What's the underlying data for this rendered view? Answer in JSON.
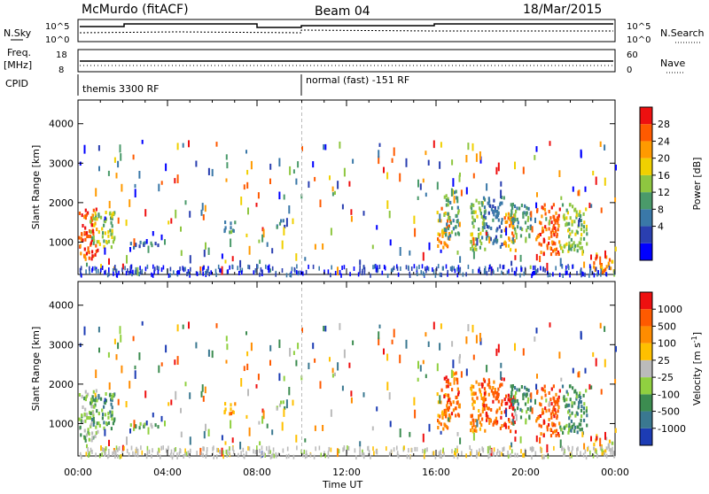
{
  "header": {
    "station": "McMurdo (fitACF)",
    "beam": "Beam 04",
    "date": "18/Mar/2015"
  },
  "strips": {
    "nsky_label": "N.Sky",
    "noise_left_ticks": [
      "10^5",
      "10^0"
    ],
    "noise_right_ticks": [
      "10^5",
      "10^0"
    ],
    "nsearch_label": "N.Search",
    "freq_label_1": "Freq.",
    "freq_label_2": "[MHz]",
    "freq_ticks": [
      "18",
      "8"
    ],
    "nave_ticks": [
      "60",
      "0"
    ],
    "nave_label": "Nave",
    "cpid_label": "CPID",
    "cpid_segments": [
      {
        "name": "themis 3300 RF",
        "start_h": 0
      },
      {
        "name": "normal (fast) -151 RF",
        "start_h": 10
      }
    ]
  },
  "x_axis": {
    "label": "Time UT",
    "ticks": [
      "00:00",
      "04:00",
      "08:00",
      "12:00",
      "16:00",
      "20:00",
      "00:00"
    ]
  },
  "chart_data": [
    {
      "type": "heatmap",
      "panel": "power",
      "x_range_hours": [
        0,
        24
      ],
      "ylabel": "Slant Range [km]",
      "y_range": [
        180,
        4600
      ],
      "y_ticks": [
        "4000",
        "3000",
        "2000",
        "1000"
      ],
      "colorbar": {
        "label": "Power [dB]",
        "ticks": [
          "28",
          "24",
          "20",
          "16",
          "12",
          "8",
          "4"
        ],
        "colors": [
          "#0000ff",
          "#2a3fb0",
          "#3a78a8",
          "#4a9a6a",
          "#8ec640",
          "#f0d000",
          "#ff9a00",
          "#ff5a00",
          "#ee1010"
        ]
      }
    },
    {
      "type": "heatmap",
      "panel": "velocity",
      "x_range_hours": [
        0,
        24
      ],
      "ylabel": "Slant Range [km]",
      "y_range": [
        180,
        4600
      ],
      "y_ticks": [
        "4000",
        "3000",
        "2000",
        "1000"
      ],
      "colorbar": {
        "label": "Velocity [m s",
        "label_sup": "-1",
        "label_end": "]",
        "ticks": [
          "1000",
          "500",
          "100",
          "25",
          "-25",
          "-100",
          "-500",
          "-1000"
        ],
        "colors": [
          "#1c3cb4",
          "#3a7890",
          "#3c8c50",
          "#90d040",
          "#bbbbbb",
          "#ffc000",
          "#ff8c00",
          "#ff5a00",
          "#ee1010"
        ]
      }
    }
  ],
  "scatter_patches": {
    "power": [
      {
        "t": 0.0,
        "t2": 0.9,
        "r1": 600,
        "r2": 1900,
        "c": 7
      },
      {
        "t": 0.5,
        "t2": 1.6,
        "r1": 900,
        "r2": 1800,
        "c": 4
      },
      {
        "t": 2.2,
        "t2": 3.7,
        "r1": 900,
        "r2": 1050,
        "c": 2
      },
      {
        "t": 6.5,
        "t2": 7.0,
        "r1": 1200,
        "r2": 1600,
        "c": 3
      },
      {
        "t": 8.7,
        "t2": 9.2,
        "r1": 1400,
        "r2": 1600,
        "c": 2
      },
      {
        "t": 16.0,
        "t2": 16.6,
        "r1": 900,
        "r2": 1900,
        "c": 6
      },
      {
        "t": 16.3,
        "t2": 17.0,
        "r1": 1200,
        "r2": 2400,
        "c": 3
      },
      {
        "t": 17.5,
        "t2": 18.2,
        "r1": 800,
        "r2": 2100,
        "c": 4
      },
      {
        "t": 18.0,
        "t2": 19.0,
        "r1": 900,
        "r2": 2200,
        "c": 2
      },
      {
        "t": 19.0,
        "t2": 19.6,
        "r1": 800,
        "r2": 1800,
        "c": 6
      },
      {
        "t": 19.3,
        "t2": 20.2,
        "r1": 1000,
        "r2": 2000,
        "c": 3
      },
      {
        "t": 20.4,
        "t2": 21.5,
        "r1": 700,
        "r2": 2000,
        "c": 7
      },
      {
        "t": 21.5,
        "t2": 22.7,
        "r1": 800,
        "r2": 2000,
        "c": 4
      },
      {
        "t": 23.0,
        "t2": 24.0,
        "r1": 250,
        "r2": 700,
        "c": 6
      }
    ],
    "velocity": [
      {
        "t": 0.0,
        "t2": 0.9,
        "r1": 600,
        "r2": 1900,
        "c": 3
      },
      {
        "t": 0.5,
        "t2": 1.6,
        "r1": 900,
        "r2": 1800,
        "c": 2
      },
      {
        "t": 2.2,
        "t2": 3.7,
        "r1": 900,
        "r2": 1050,
        "c": 3
      },
      {
        "t": 6.5,
        "t2": 7.0,
        "r1": 1200,
        "r2": 1600,
        "c": 6
      },
      {
        "t": 8.7,
        "t2": 9.2,
        "r1": 1400,
        "r2": 1600,
        "c": 3
      },
      {
        "t": 16.0,
        "t2": 16.6,
        "r1": 900,
        "r2": 1900,
        "c": 6
      },
      {
        "t": 16.3,
        "t2": 17.0,
        "r1": 1200,
        "r2": 2400,
        "c": 7
      },
      {
        "t": 17.5,
        "t2": 18.2,
        "r1": 800,
        "r2": 2100,
        "c": 6
      },
      {
        "t": 18.0,
        "t2": 19.0,
        "r1": 900,
        "r2": 2200,
        "c": 7
      },
      {
        "t": 19.0,
        "t2": 19.6,
        "r1": 800,
        "r2": 1800,
        "c": 8
      },
      {
        "t": 19.3,
        "t2": 20.2,
        "r1": 1000,
        "r2": 2000,
        "c": 2
      },
      {
        "t": 20.4,
        "t2": 21.5,
        "r1": 700,
        "r2": 2000,
        "c": 7
      },
      {
        "t": 21.5,
        "t2": 22.7,
        "r1": 800,
        "r2": 2000,
        "c": 2
      },
      {
        "t": 23.0,
        "t2": 24.0,
        "r1": 250,
        "r2": 700,
        "c": 4
      }
    ]
  }
}
